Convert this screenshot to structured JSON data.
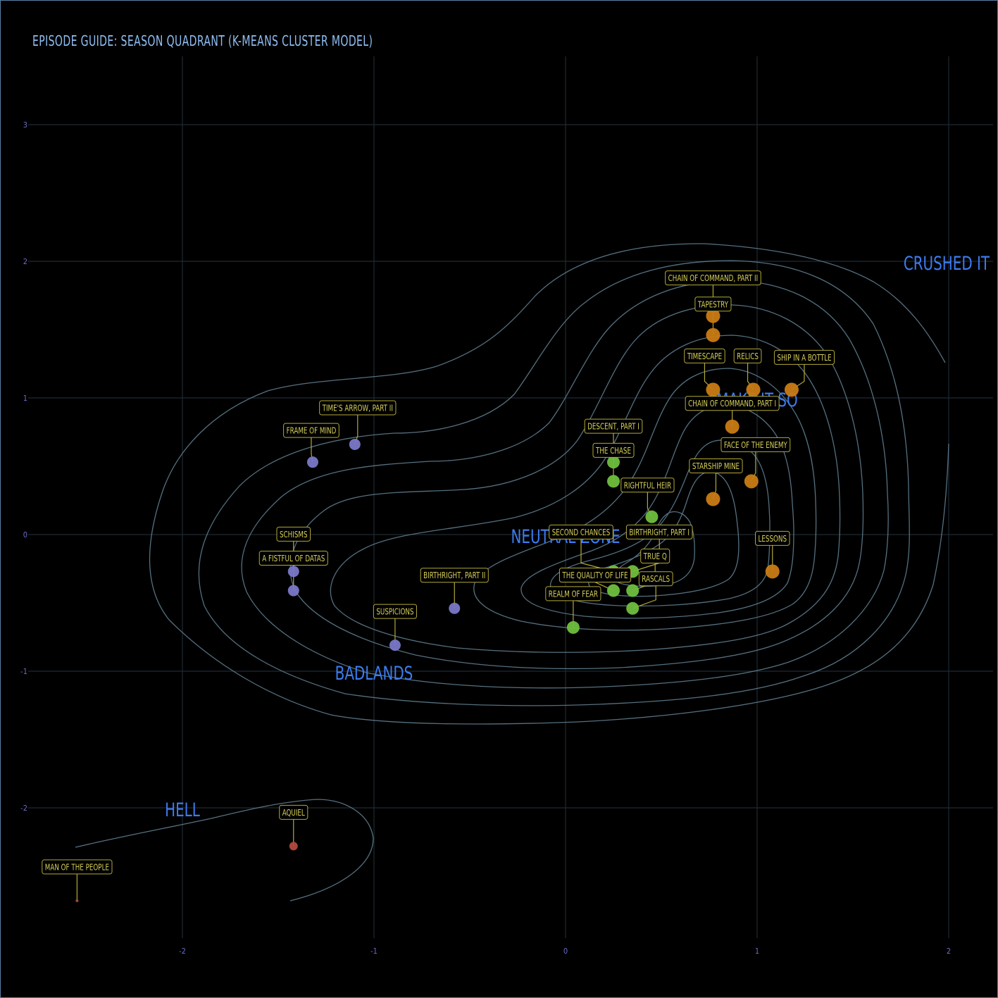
{
  "chart_data": {
    "type": "scatter",
    "title": "EPISODE GUIDE: SEASON QUADRANT (K-MEANS CLUSTER MODEL)",
    "xlabel": "",
    "ylabel": "",
    "xlim": [
      -2.5,
      2.25
    ],
    "ylim": [
      -2.9,
      3.5
    ],
    "x_ticks": [
      -2,
      -1,
      0,
      1,
      2
    ],
    "y_ticks": [
      -2,
      -1,
      0,
      1,
      2,
      3
    ],
    "grid": true,
    "colors": {
      "background": "#000000",
      "grid": "#1f2a33",
      "tick": "#6a6ec8",
      "contour": "#5e7d8e",
      "region": "#3d7cf0",
      "label_border": "#b3a838",
      "label_text": "#d6cf5a",
      "cluster_orange": "#c97b14",
      "cluster_green": "#6fbf3e",
      "cluster_purple": "#7a78c8",
      "cluster_red": "#b04a3c"
    },
    "regions": [
      {
        "name": "CRUSHED IT",
        "x": 2.0,
        "y": 2.0
      },
      {
        "name": "MAKE IT SO",
        "x": 1.0,
        "y": 1.0
      },
      {
        "name": "NEUTRAL ZONE",
        "x": 0.0,
        "y": 0.0
      },
      {
        "name": "BADLANDS",
        "x": -1.0,
        "y": -1.0
      },
      {
        "name": "HELL",
        "x": -2.0,
        "y": -2.0
      }
    ],
    "points": [
      {
        "label": "CHAIN OF COMMAND, PART II",
        "x": 0.77,
        "y": 1.6,
        "cluster": "orange",
        "size": 10
      },
      {
        "label": "TAPESTRY",
        "x": 0.77,
        "y": 1.46,
        "cluster": "orange",
        "size": 10
      },
      {
        "label": "TIMESCAPE",
        "x": 0.77,
        "y": 1.06,
        "cluster": "orange",
        "size": 10
      },
      {
        "label": "RELICS",
        "x": 0.98,
        "y": 1.06,
        "cluster": "orange",
        "size": 10
      },
      {
        "label": "SHIP IN A BOTTLE",
        "x": 1.18,
        "y": 1.06,
        "cluster": "orange",
        "size": 10
      },
      {
        "label": "CHAIN OF COMMAND, PART I",
        "x": 0.87,
        "y": 0.79,
        "cluster": "orange",
        "size": 10
      },
      {
        "label": "FACE OF THE ENEMY",
        "x": 0.97,
        "y": 0.39,
        "cluster": "orange",
        "size": 10
      },
      {
        "label": "STARSHIP MINE",
        "x": 0.77,
        "y": 0.26,
        "cluster": "orange",
        "size": 10
      },
      {
        "label": "LESSONS",
        "x": 1.08,
        "y": -0.27,
        "cluster": "orange",
        "size": 10
      },
      {
        "label": "DESCENT, PART I",
        "x": 0.25,
        "y": 0.53,
        "cluster": "green",
        "size": 9
      },
      {
        "label": "THE CHASE",
        "x": 0.25,
        "y": 0.39,
        "cluster": "green",
        "size": 9
      },
      {
        "label": "RIGHTFUL HEIR",
        "x": 0.45,
        "y": 0.13,
        "cluster": "green",
        "size": 9
      },
      {
        "label": "SECOND CHANCES",
        "x": 0.25,
        "y": -0.27,
        "cluster": "green",
        "size": 9
      },
      {
        "label": "BIRTHRIGHT, PART I",
        "x": 0.35,
        "y": -0.27,
        "cluster": "green",
        "size": 9
      },
      {
        "label": "THE QUALITY OF LIFE",
        "x": 0.25,
        "y": -0.41,
        "cluster": "green",
        "size": 9
      },
      {
        "label": "TRUE Q",
        "x": 0.35,
        "y": -0.41,
        "cluster": "green",
        "size": 9
      },
      {
        "label": "RASCALS",
        "x": 0.35,
        "y": -0.54,
        "cluster": "green",
        "size": 9
      },
      {
        "label": "REALM OF FEAR",
        "x": 0.04,
        "y": -0.68,
        "cluster": "green",
        "size": 9
      },
      {
        "label": "TIME'S ARROW, PART II",
        "x": -1.1,
        "y": 0.66,
        "cluster": "purple",
        "size": 8
      },
      {
        "label": "FRAME OF MIND",
        "x": -1.32,
        "y": 0.53,
        "cluster": "purple",
        "size": 8
      },
      {
        "label": "SCHISMS",
        "x": -1.42,
        "y": -0.27,
        "cluster": "purple",
        "size": 8
      },
      {
        "label": "A FISTFUL OF DATAS",
        "x": -1.42,
        "y": -0.41,
        "cluster": "purple",
        "size": 8
      },
      {
        "label": "BIRTHRIGHT, PART II",
        "x": -0.58,
        "y": -0.54,
        "cluster": "purple",
        "size": 8
      },
      {
        "label": "SUSPICIONS",
        "x": -0.89,
        "y": -0.81,
        "cluster": "purple",
        "size": 8
      },
      {
        "label": "AQUIEL",
        "x": -1.42,
        "y": -2.28,
        "cluster": "red",
        "size": 6
      },
      {
        "label": "MAN OF THE PEOPLE",
        "x": -2.55,
        "y": -2.68,
        "cluster": "red",
        "size": 2
      }
    ]
  }
}
